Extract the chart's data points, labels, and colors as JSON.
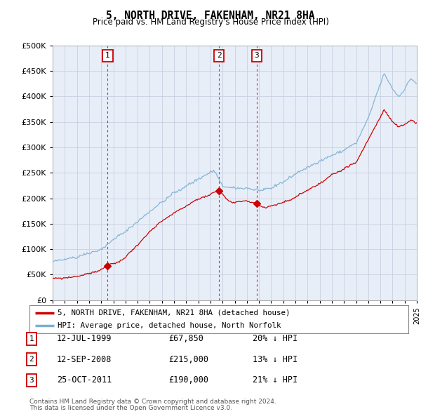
{
  "title": "5, NORTH DRIVE, FAKENHAM, NR21 8HA",
  "subtitle": "Price paid vs. HM Land Registry's House Price Index (HPI)",
  "legend_label_red": "5, NORTH DRIVE, FAKENHAM, NR21 8HA (detached house)",
  "legend_label_blue": "HPI: Average price, detached house, North Norfolk",
  "footer_line1": "Contains HM Land Registry data © Crown copyright and database right 2024.",
  "footer_line2": "This data is licensed under the Open Government Licence v3.0.",
  "transactions": [
    {
      "num": 1,
      "date": "12-JUL-1999",
      "price": "£67,850",
      "pct": "20% ↓ HPI",
      "year": 1999.53,
      "price_val": 67850
    },
    {
      "num": 2,
      "date": "12-SEP-2008",
      "price": "£215,000",
      "pct": "13% ↓ HPI",
      "year": 2008.7,
      "price_val": 215000
    },
    {
      "num": 3,
      "date": "25-OCT-2011",
      "price": "£190,000",
      "pct": "21% ↓ HPI",
      "year": 2011.81,
      "price_val": 190000
    }
  ],
  "ylim": [
    0,
    500000
  ],
  "yticks": [
    0,
    50000,
    100000,
    150000,
    200000,
    250000,
    300000,
    350000,
    400000,
    450000,
    500000
  ],
  "red_color": "#cc0000",
  "blue_color": "#7bafd4",
  "background_color": "#ffffff",
  "chart_bg_color": "#e8eef8",
  "grid_color": "#c8d0e0"
}
